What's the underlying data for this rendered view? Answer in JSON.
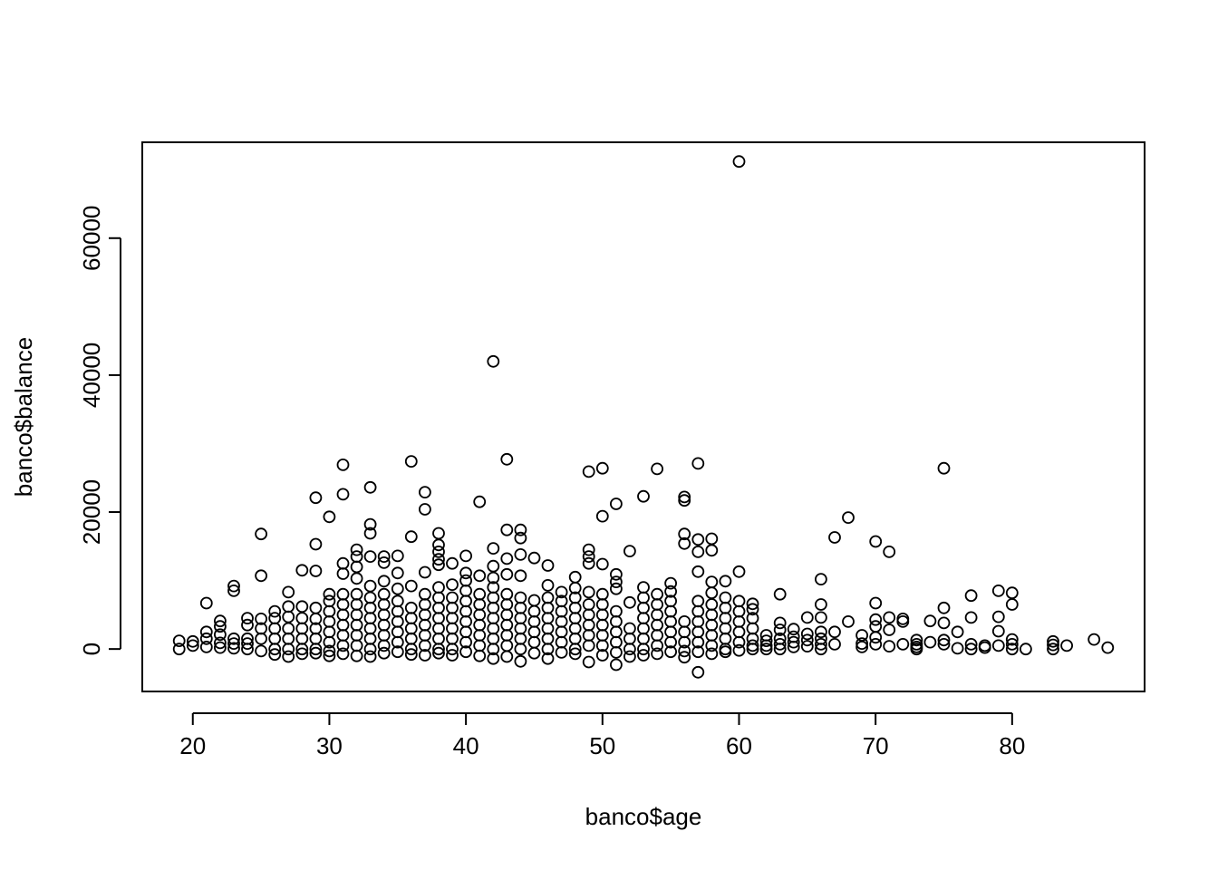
{
  "chart_data": {
    "type": "scatter",
    "title": "",
    "xlabel": "banco$age",
    "ylabel": "banco$balance",
    "xlim": [
      16.3,
      89.7
    ],
    "ylim": [
      -6200,
      74000
    ],
    "xticks": [
      20,
      30,
      40,
      50,
      60,
      70,
      80
    ],
    "yticks": [
      0,
      20000,
      40000,
      60000
    ],
    "xtick_labels": [
      "20",
      "30",
      "40",
      "50",
      "60",
      "70",
      "80"
    ],
    "ytick_labels": [
      "0",
      "20000",
      "40000",
      "60000"
    ],
    "grid": false,
    "legend": "none",
    "marker": "open-circle",
    "marker_color": "#000000",
    "points": [
      [
        19,
        0
      ],
      [
        19,
        1200
      ],
      [
        20,
        500
      ],
      [
        20,
        1100
      ],
      [
        21,
        300
      ],
      [
        21,
        6700
      ],
      [
        21,
        2500
      ],
      [
        21,
        1500
      ],
      [
        22,
        4100
      ],
      [
        22,
        3300
      ],
      [
        22,
        2100
      ],
      [
        22,
        900
      ],
      [
        22,
        200
      ],
      [
        23,
        9200
      ],
      [
        23,
        8500
      ],
      [
        23,
        1500
      ],
      [
        23,
        800
      ],
      [
        23,
        100
      ],
      [
        24,
        4500
      ],
      [
        24,
        3500
      ],
      [
        24,
        1500
      ],
      [
        24,
        800
      ],
      [
        24,
        0
      ],
      [
        25,
        16800
      ],
      [
        25,
        10700
      ],
      [
        25,
        4400
      ],
      [
        25,
        3000
      ],
      [
        25,
        1500
      ],
      [
        25,
        -300
      ],
      [
        26,
        5500
      ],
      [
        26,
        4500
      ],
      [
        26,
        3000
      ],
      [
        26,
        1500
      ],
      [
        26,
        0
      ],
      [
        26,
        -800
      ],
      [
        27,
        8300
      ],
      [
        27,
        6200
      ],
      [
        27,
        4700
      ],
      [
        27,
        3000
      ],
      [
        27,
        1500
      ],
      [
        27,
        0
      ],
      [
        27,
        -1100
      ],
      [
        28,
        11500
      ],
      [
        28,
        6200
      ],
      [
        28,
        4500
      ],
      [
        28,
        3000
      ],
      [
        28,
        1500
      ],
      [
        28,
        0
      ],
      [
        28,
        -700
      ],
      [
        29,
        22100
      ],
      [
        29,
        15300
      ],
      [
        29,
        11400
      ],
      [
        29,
        6000
      ],
      [
        29,
        4400
      ],
      [
        29,
        3000
      ],
      [
        29,
        1500
      ],
      [
        29,
        0
      ],
      [
        29,
        -600
      ],
      [
        30,
        19300
      ],
      [
        30,
        8000
      ],
      [
        30,
        7000
      ],
      [
        30,
        5500
      ],
      [
        30,
        4000
      ],
      [
        30,
        2500
      ],
      [
        30,
        1000
      ],
      [
        30,
        -300
      ],
      [
        30,
        -1000
      ],
      [
        31,
        26900
      ],
      [
        31,
        22600
      ],
      [
        31,
        12500
      ],
      [
        31,
        11000
      ],
      [
        31,
        8000
      ],
      [
        31,
        6500
      ],
      [
        31,
        5000
      ],
      [
        31,
        3500
      ],
      [
        31,
        2000
      ],
      [
        31,
        500
      ],
      [
        31,
        -700
      ],
      [
        32,
        14500
      ],
      [
        32,
        13500
      ],
      [
        32,
        12000
      ],
      [
        32,
        10300
      ],
      [
        32,
        8000
      ],
      [
        32,
        6500
      ],
      [
        32,
        5000
      ],
      [
        32,
        3500
      ],
      [
        32,
        2000
      ],
      [
        32,
        500
      ],
      [
        32,
        -1000
      ],
      [
        33,
        23600
      ],
      [
        33,
        18200
      ],
      [
        33,
        16900
      ],
      [
        33,
        13500
      ],
      [
        33,
        9200
      ],
      [
        33,
        7500
      ],
      [
        33,
        6000
      ],
      [
        33,
        4500
      ],
      [
        33,
        3000
      ],
      [
        33,
        1500
      ],
      [
        33,
        0
      ],
      [
        33,
        -1100
      ],
      [
        34,
        13500
      ],
      [
        34,
        12600
      ],
      [
        34,
        9900
      ],
      [
        34,
        8000
      ],
      [
        34,
        6500
      ],
      [
        34,
        5000
      ],
      [
        34,
        3500
      ],
      [
        34,
        2000
      ],
      [
        34,
        500
      ],
      [
        34,
        -600
      ],
      [
        35,
        13600
      ],
      [
        35,
        11100
      ],
      [
        35,
        8800
      ],
      [
        35,
        7000
      ],
      [
        35,
        5500
      ],
      [
        35,
        4000
      ],
      [
        35,
        2500
      ],
      [
        35,
        1000
      ],
      [
        35,
        -400
      ],
      [
        36,
        27400
      ],
      [
        36,
        16400
      ],
      [
        36,
        9200
      ],
      [
        36,
        6000
      ],
      [
        36,
        4500
      ],
      [
        36,
        3000
      ],
      [
        36,
        1500
      ],
      [
        36,
        0
      ],
      [
        36,
        -800
      ],
      [
        37,
        22900
      ],
      [
        37,
        20400
      ],
      [
        37,
        11200
      ],
      [
        37,
        8000
      ],
      [
        37,
        6500
      ],
      [
        37,
        5000
      ],
      [
        37,
        3500
      ],
      [
        37,
        2000
      ],
      [
        37,
        500
      ],
      [
        37,
        -900
      ],
      [
        38,
        16900
      ],
      [
        38,
        15200
      ],
      [
        38,
        14200
      ],
      [
        38,
        13100
      ],
      [
        38,
        12300
      ],
      [
        38,
        9000
      ],
      [
        38,
        7500
      ],
      [
        38,
        6000
      ],
      [
        38,
        4500
      ],
      [
        38,
        3000
      ],
      [
        38,
        1500
      ],
      [
        38,
        0
      ],
      [
        38,
        -600
      ],
      [
        39,
        12500
      ],
      [
        39,
        9400
      ],
      [
        39,
        7500
      ],
      [
        39,
        6000
      ],
      [
        39,
        4500
      ],
      [
        39,
        3000
      ],
      [
        39,
        1500
      ],
      [
        39,
        0
      ],
      [
        39,
        -900
      ],
      [
        40,
        13600
      ],
      [
        40,
        11100
      ],
      [
        40,
        10000
      ],
      [
        40,
        8500
      ],
      [
        40,
        7000
      ],
      [
        40,
        5500
      ],
      [
        40,
        4000
      ],
      [
        40,
        2500
      ],
      [
        40,
        1000
      ],
      [
        40,
        -400
      ],
      [
        41,
        21500
      ],
      [
        41,
        10700
      ],
      [
        41,
        8000
      ],
      [
        41,
        6500
      ],
      [
        41,
        5000
      ],
      [
        41,
        3500
      ],
      [
        41,
        2000
      ],
      [
        41,
        500
      ],
      [
        41,
        -1000
      ],
      [
        42,
        42000
      ],
      [
        42,
        14700
      ],
      [
        42,
        12100
      ],
      [
        42,
        10400
      ],
      [
        42,
        9000
      ],
      [
        42,
        7500
      ],
      [
        42,
        6000
      ],
      [
        42,
        4500
      ],
      [
        42,
        3000
      ],
      [
        42,
        1500
      ],
      [
        42,
        0
      ],
      [
        42,
        -1400
      ],
      [
        43,
        27700
      ],
      [
        43,
        17400
      ],
      [
        43,
        13200
      ],
      [
        43,
        10900
      ],
      [
        43,
        8000
      ],
      [
        43,
        6500
      ],
      [
        43,
        5000
      ],
      [
        43,
        3500
      ],
      [
        43,
        2000
      ],
      [
        43,
        500
      ],
      [
        43,
        -1100
      ],
      [
        44,
        17400
      ],
      [
        44,
        16200
      ],
      [
        44,
        13800
      ],
      [
        44,
        10700
      ],
      [
        44,
        7500
      ],
      [
        44,
        6000
      ],
      [
        44,
        4500
      ],
      [
        44,
        3000
      ],
      [
        44,
        1500
      ],
      [
        44,
        0
      ],
      [
        44,
        -1800
      ],
      [
        45,
        13300
      ],
      [
        45,
        7100
      ],
      [
        45,
        5500
      ],
      [
        45,
        4000
      ],
      [
        45,
        2500
      ],
      [
        45,
        1000
      ],
      [
        45,
        -600
      ],
      [
        46,
        12200
      ],
      [
        46,
        9300
      ],
      [
        46,
        7500
      ],
      [
        46,
        6000
      ],
      [
        46,
        4500
      ],
      [
        46,
        3000
      ],
      [
        46,
        1500
      ],
      [
        46,
        0
      ],
      [
        46,
        -1400
      ],
      [
        47,
        8300
      ],
      [
        47,
        7000
      ],
      [
        47,
        5500
      ],
      [
        47,
        4000
      ],
      [
        47,
        2500
      ],
      [
        47,
        1000
      ],
      [
        47,
        -500
      ],
      [
        48,
        10500
      ],
      [
        48,
        8900
      ],
      [
        48,
        7500
      ],
      [
        48,
        6000
      ],
      [
        48,
        4500
      ],
      [
        48,
        3000
      ],
      [
        48,
        1500
      ],
      [
        48,
        0
      ],
      [
        48,
        -700
      ],
      [
        49,
        25900
      ],
      [
        49,
        14500
      ],
      [
        49,
        13500
      ],
      [
        49,
        12500
      ],
      [
        49,
        8300
      ],
      [
        49,
        6500
      ],
      [
        49,
        5000
      ],
      [
        49,
        3500
      ],
      [
        49,
        2000
      ],
      [
        49,
        500
      ],
      [
        49,
        -1900
      ],
      [
        50,
        26400
      ],
      [
        50,
        19400
      ],
      [
        50,
        12400
      ],
      [
        50,
        8000
      ],
      [
        50,
        6500
      ],
      [
        50,
        5000
      ],
      [
        50,
        3500
      ],
      [
        50,
        2000
      ],
      [
        50,
        500
      ],
      [
        50,
        -900
      ],
      [
        51,
        21200
      ],
      [
        51,
        10900
      ],
      [
        51,
        9800
      ],
      [
        51,
        8800
      ],
      [
        51,
        5500
      ],
      [
        51,
        4000
      ],
      [
        51,
        2500
      ],
      [
        51,
        1000
      ],
      [
        51,
        -500
      ],
      [
        51,
        -2300
      ],
      [
        52,
        14300
      ],
      [
        52,
        6800
      ],
      [
        52,
        3000
      ],
      [
        52,
        1500
      ],
      [
        52,
        0
      ],
      [
        52,
        -1100
      ],
      [
        53,
        22300
      ],
      [
        53,
        9000
      ],
      [
        53,
        7500
      ],
      [
        53,
        6000
      ],
      [
        53,
        4500
      ],
      [
        53,
        3000
      ],
      [
        53,
        1500
      ],
      [
        53,
        0
      ],
      [
        53,
        -900
      ],
      [
        54,
        26300
      ],
      [
        54,
        8000
      ],
      [
        54,
        6500
      ],
      [
        54,
        5000
      ],
      [
        54,
        3500
      ],
      [
        54,
        2000
      ],
      [
        54,
        500
      ],
      [
        54,
        -700
      ],
      [
        55,
        9600
      ],
      [
        55,
        8400
      ],
      [
        55,
        7000
      ],
      [
        55,
        5500
      ],
      [
        55,
        4000
      ],
      [
        55,
        2500
      ],
      [
        55,
        1000
      ],
      [
        55,
        -400
      ],
      [
        56,
        22200
      ],
      [
        56,
        21700
      ],
      [
        56,
        16800
      ],
      [
        56,
        15400
      ],
      [
        56,
        4000
      ],
      [
        56,
        2500
      ],
      [
        56,
        1000
      ],
      [
        56,
        -300
      ],
      [
        56,
        -1200
      ],
      [
        57,
        27100
      ],
      [
        57,
        16000
      ],
      [
        57,
        14200
      ],
      [
        57,
        11300
      ],
      [
        57,
        7000
      ],
      [
        57,
        5500
      ],
      [
        57,
        4000
      ],
      [
        57,
        2500
      ],
      [
        57,
        1000
      ],
      [
        57,
        -400
      ],
      [
        57,
        -3400
      ],
      [
        58,
        16100
      ],
      [
        58,
        14400
      ],
      [
        58,
        9800
      ],
      [
        58,
        8200
      ],
      [
        58,
        6500
      ],
      [
        58,
        5000
      ],
      [
        58,
        3500
      ],
      [
        58,
        2000
      ],
      [
        58,
        500
      ],
      [
        58,
        -700
      ],
      [
        59,
        9900
      ],
      [
        59,
        7500
      ],
      [
        59,
        6000
      ],
      [
        59,
        4500
      ],
      [
        59,
        3000
      ],
      [
        59,
        1500
      ],
      [
        59,
        0
      ],
      [
        59,
        -400
      ],
      [
        60,
        71200
      ],
      [
        60,
        11300
      ],
      [
        60,
        7000
      ],
      [
        60,
        5500
      ],
      [
        60,
        4000
      ],
      [
        60,
        2500
      ],
      [
        60,
        1000
      ],
      [
        60,
        -200
      ],
      [
        61,
        6600
      ],
      [
        61,
        5800
      ],
      [
        61,
        4500
      ],
      [
        61,
        3000
      ],
      [
        61,
        1500
      ],
      [
        61,
        500
      ],
      [
        61,
        0
      ],
      [
        62,
        2000
      ],
      [
        62,
        1200
      ],
      [
        62,
        500
      ],
      [
        62,
        0
      ],
      [
        63,
        8000
      ],
      [
        63,
        3800
      ],
      [
        63,
        2800
      ],
      [
        63,
        1500
      ],
      [
        63,
        700
      ],
      [
        63,
        0
      ],
      [
        64,
        2900
      ],
      [
        64,
        1800
      ],
      [
        64,
        1000
      ],
      [
        64,
        300
      ],
      [
        65,
        4600
      ],
      [
        65,
        2200
      ],
      [
        65,
        1300
      ],
      [
        65,
        400
      ],
      [
        66,
        10200
      ],
      [
        66,
        6500
      ],
      [
        66,
        4600
      ],
      [
        66,
        2500
      ],
      [
        66,
        1500
      ],
      [
        66,
        700
      ],
      [
        66,
        0
      ],
      [
        67,
        16300
      ],
      [
        67,
        2500
      ],
      [
        67,
        700
      ],
      [
        68,
        19200
      ],
      [
        68,
        4000
      ],
      [
        69,
        2000
      ],
      [
        69,
        800
      ],
      [
        69,
        300
      ],
      [
        70,
        15700
      ],
      [
        70,
        6700
      ],
      [
        70,
        4300
      ],
      [
        70,
        3300
      ],
      [
        70,
        1700
      ],
      [
        70,
        700
      ],
      [
        71,
        14200
      ],
      [
        71,
        4600
      ],
      [
        71,
        2800
      ],
      [
        71,
        400
      ],
      [
        72,
        4400
      ],
      [
        72,
        4000
      ],
      [
        72,
        700
      ],
      [
        73,
        1300
      ],
      [
        73,
        700
      ],
      [
        73,
        300
      ],
      [
        73,
        0
      ],
      [
        74,
        4100
      ],
      [
        74,
        1000
      ],
      [
        75,
        26400
      ],
      [
        75,
        6000
      ],
      [
        75,
        3800
      ],
      [
        75,
        1300
      ],
      [
        75,
        700
      ],
      [
        76,
        2500
      ],
      [
        76,
        100
      ],
      [
        77,
        7800
      ],
      [
        77,
        4600
      ],
      [
        77,
        700
      ],
      [
        77,
        0
      ],
      [
        78,
        500
      ],
      [
        78,
        200
      ],
      [
        79,
        8500
      ],
      [
        79,
        4700
      ],
      [
        79,
        2600
      ],
      [
        79,
        500
      ],
      [
        80,
        8200
      ],
      [
        80,
        6500
      ],
      [
        80,
        1400
      ],
      [
        80,
        700
      ],
      [
        80,
        0
      ],
      [
        81,
        0
      ],
      [
        83,
        1100
      ],
      [
        83,
        600
      ],
      [
        83,
        0
      ],
      [
        84,
        500
      ],
      [
        86,
        1400
      ],
      [
        87,
        200
      ]
    ]
  }
}
